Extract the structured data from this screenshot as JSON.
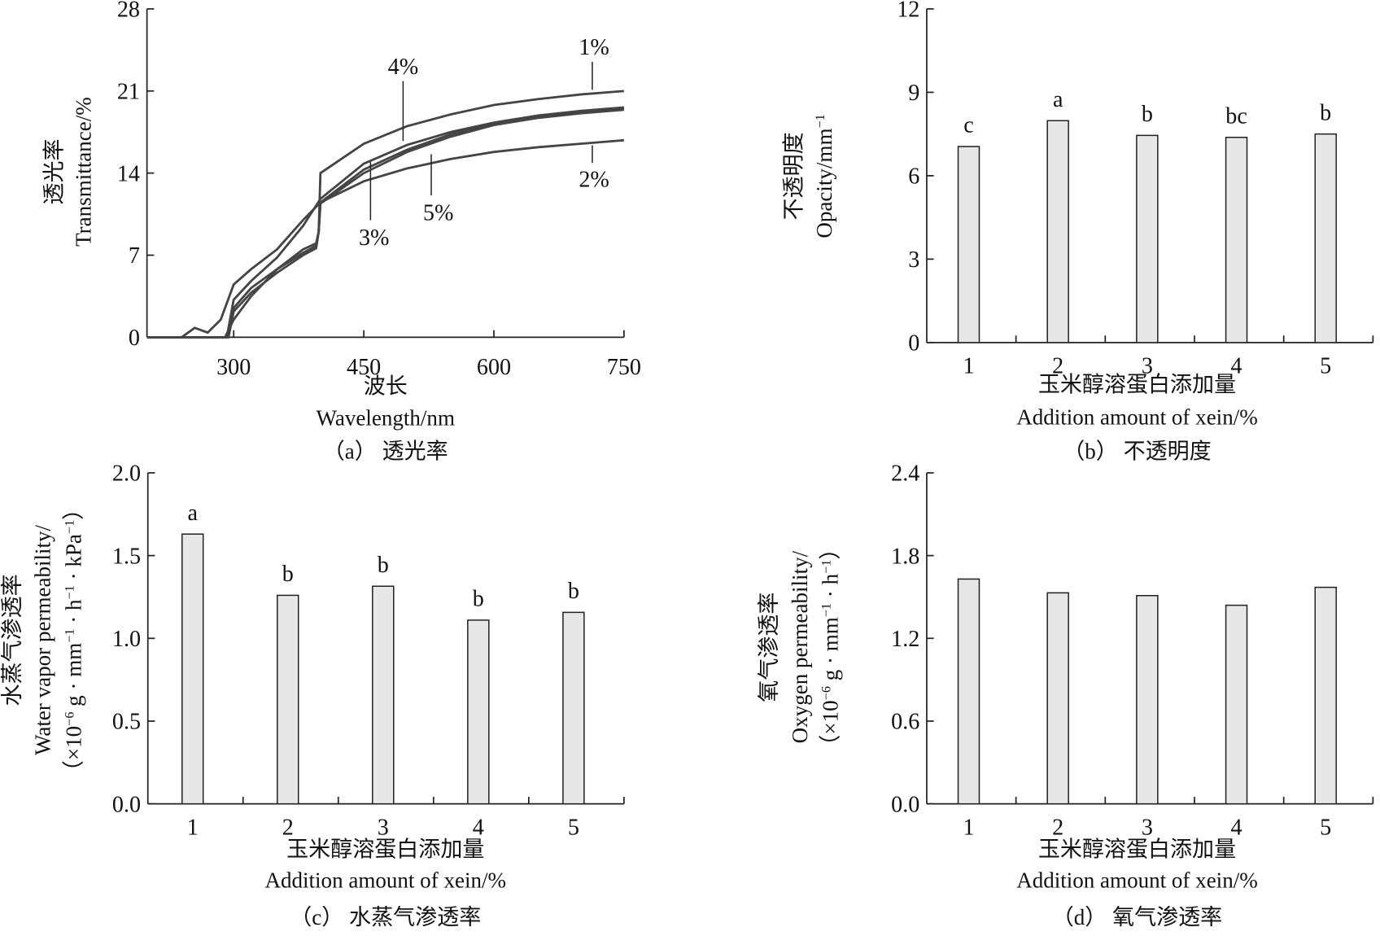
{
  "chart_data": [
    {
      "type": "line",
      "caption": "（a） 透光率",
      "xlabel": [
        "波长",
        "Wavelength/nm"
      ],
      "ylabel": [
        [
          {
            "t": "透光率"
          }
        ],
        [
          {
            "t": "Transmittance/%"
          }
        ]
      ],
      "xlim": [
        200,
        750
      ],
      "ylim": [
        0,
        28
      ],
      "xticks": [
        300,
        450,
        600,
        750
      ],
      "yticks": [
        0,
        7,
        14,
        21,
        28
      ],
      "series": [
        {
          "name": "1%",
          "x": [
            200,
            290,
            300,
            320,
            350,
            380,
            395,
            398,
            400,
            450,
            500,
            550,
            600,
            650,
            700,
            750
          ],
          "y": [
            0,
            0,
            1.5,
            3.5,
            5.8,
            7.5,
            8.0,
            9,
            14,
            16.5,
            18.0,
            19.0,
            19.8,
            20.3,
            20.7,
            21.0
          ]
        },
        {
          "name": "2%",
          "x": [
            200,
            240,
            255,
            270,
            285,
            300,
            320,
            350,
            380,
            400,
            450,
            500,
            550,
            600,
            650,
            700,
            750
          ],
          "y": [
            0,
            0,
            0.8,
            0.4,
            1.5,
            4.5,
            5.8,
            7.5,
            10,
            11.5,
            13.3,
            14.4,
            15.2,
            15.8,
            16.2,
            16.5,
            16.8
          ]
        },
        {
          "name": "3%",
          "x": [
            200,
            292,
            300,
            320,
            350,
            380,
            395,
            398,
            400,
            450,
            500,
            550,
            600,
            650,
            700,
            750
          ],
          "y": [
            0,
            0,
            2.5,
            4.2,
            5.8,
            7.2,
            7.8,
            9,
            11.5,
            14.3,
            16.0,
            17.3,
            18.2,
            18.8,
            19.2,
            19.5
          ]
        },
        {
          "name": "4%",
          "x": [
            200,
            292,
            300,
            320,
            350,
            380,
            400,
            450,
            500,
            550,
            600,
            650,
            700,
            750
          ],
          "y": [
            0,
            0,
            3.2,
            4.8,
            6.8,
            9.5,
            11.8,
            14.8,
            16.4,
            17.5,
            18.3,
            18.9,
            19.3,
            19.6
          ]
        },
        {
          "name": "5%",
          "x": [
            200,
            294,
            300,
            320,
            350,
            380,
            395,
            398,
            400,
            450,
            500,
            550,
            600,
            650,
            700,
            750
          ],
          "y": [
            0,
            0,
            2.2,
            3.8,
            5.5,
            7.0,
            7.6,
            9,
            11.4,
            14.0,
            15.8,
            17.1,
            18.1,
            18.7,
            19.1,
            19.4
          ]
        }
      ]
    },
    {
      "type": "bar",
      "caption": "（b） 不透明度",
      "xlabel": [
        "玉米醇溶蛋白添加量",
        "Addition amount of xein/%"
      ],
      "ylabel": [
        [
          {
            "t": "不透明度"
          }
        ],
        [
          {
            "t": "Opacity/mm"
          },
          {
            "t": "−1",
            "sup": true
          }
        ]
      ],
      "categories": [
        "1",
        "2",
        "3",
        "4",
        "5"
      ],
      "values": [
        7.05,
        7.98,
        7.45,
        7.38,
        7.5
      ],
      "letters": [
        "c",
        "a",
        "b",
        "bc",
        "b"
      ],
      "ylim": [
        0,
        12
      ],
      "yticks": [
        "0",
        "3",
        "6",
        "9",
        "12"
      ]
    },
    {
      "type": "bar",
      "caption": "（c） 水蒸气渗透率",
      "xlabel": [
        "玉米醇溶蛋白添加量",
        "Addition amount of xein/%"
      ],
      "ylabel": [
        [
          {
            "t": "水蒸气渗透率"
          }
        ],
        [
          {
            "t": "Water vapor permeability/"
          }
        ],
        [
          {
            "t": "（×10"
          },
          {
            "t": "−6",
            "sup": true
          },
          {
            "t": " g · mm"
          },
          {
            "t": "−1",
            "sup": true
          },
          {
            "t": " · h"
          },
          {
            "t": "−1",
            "sup": true
          },
          {
            "t": " · kPa"
          },
          {
            "t": "−1",
            "sup": true
          },
          {
            "t": "）"
          }
        ]
      ],
      "categories": [
        "1",
        "2",
        "3",
        "4",
        "5"
      ],
      "values": [
        1.63,
        1.26,
        1.315,
        1.11,
        1.157
      ],
      "letters": [
        "a",
        "b",
        "b",
        "b",
        "b"
      ],
      "ylim": [
        0,
        2.0
      ],
      "yticks": [
        "0.0",
        "0.5",
        "1.0",
        "1.5",
        "2.0"
      ]
    },
    {
      "type": "bar",
      "caption": "（d） 氧气渗透率",
      "xlabel": [
        "玉米醇溶蛋白添加量",
        "Addition amount of xein/%"
      ],
      "ylabel": [
        [
          {
            "t": "氧气渗透率"
          }
        ],
        [
          {
            "t": "Oxygen permeability/"
          }
        ],
        [
          {
            "t": "（×10"
          },
          {
            "t": "−6",
            "sup": true
          },
          {
            "t": " g · mm"
          },
          {
            "t": "−1",
            "sup": true
          },
          {
            "t": " · h"
          },
          {
            "t": "−1",
            "sup": true
          },
          {
            "t": "）"
          }
        ]
      ],
      "categories": [
        "1",
        "2",
        "3",
        "4",
        "5"
      ],
      "values": [
        1.63,
        1.53,
        1.51,
        1.44,
        1.57
      ],
      "letters": [],
      "ylim": [
        0,
        2.4
      ],
      "yticks": [
        "0.0",
        "0.6",
        "1.2",
        "1.8",
        "2.4"
      ]
    }
  ]
}
